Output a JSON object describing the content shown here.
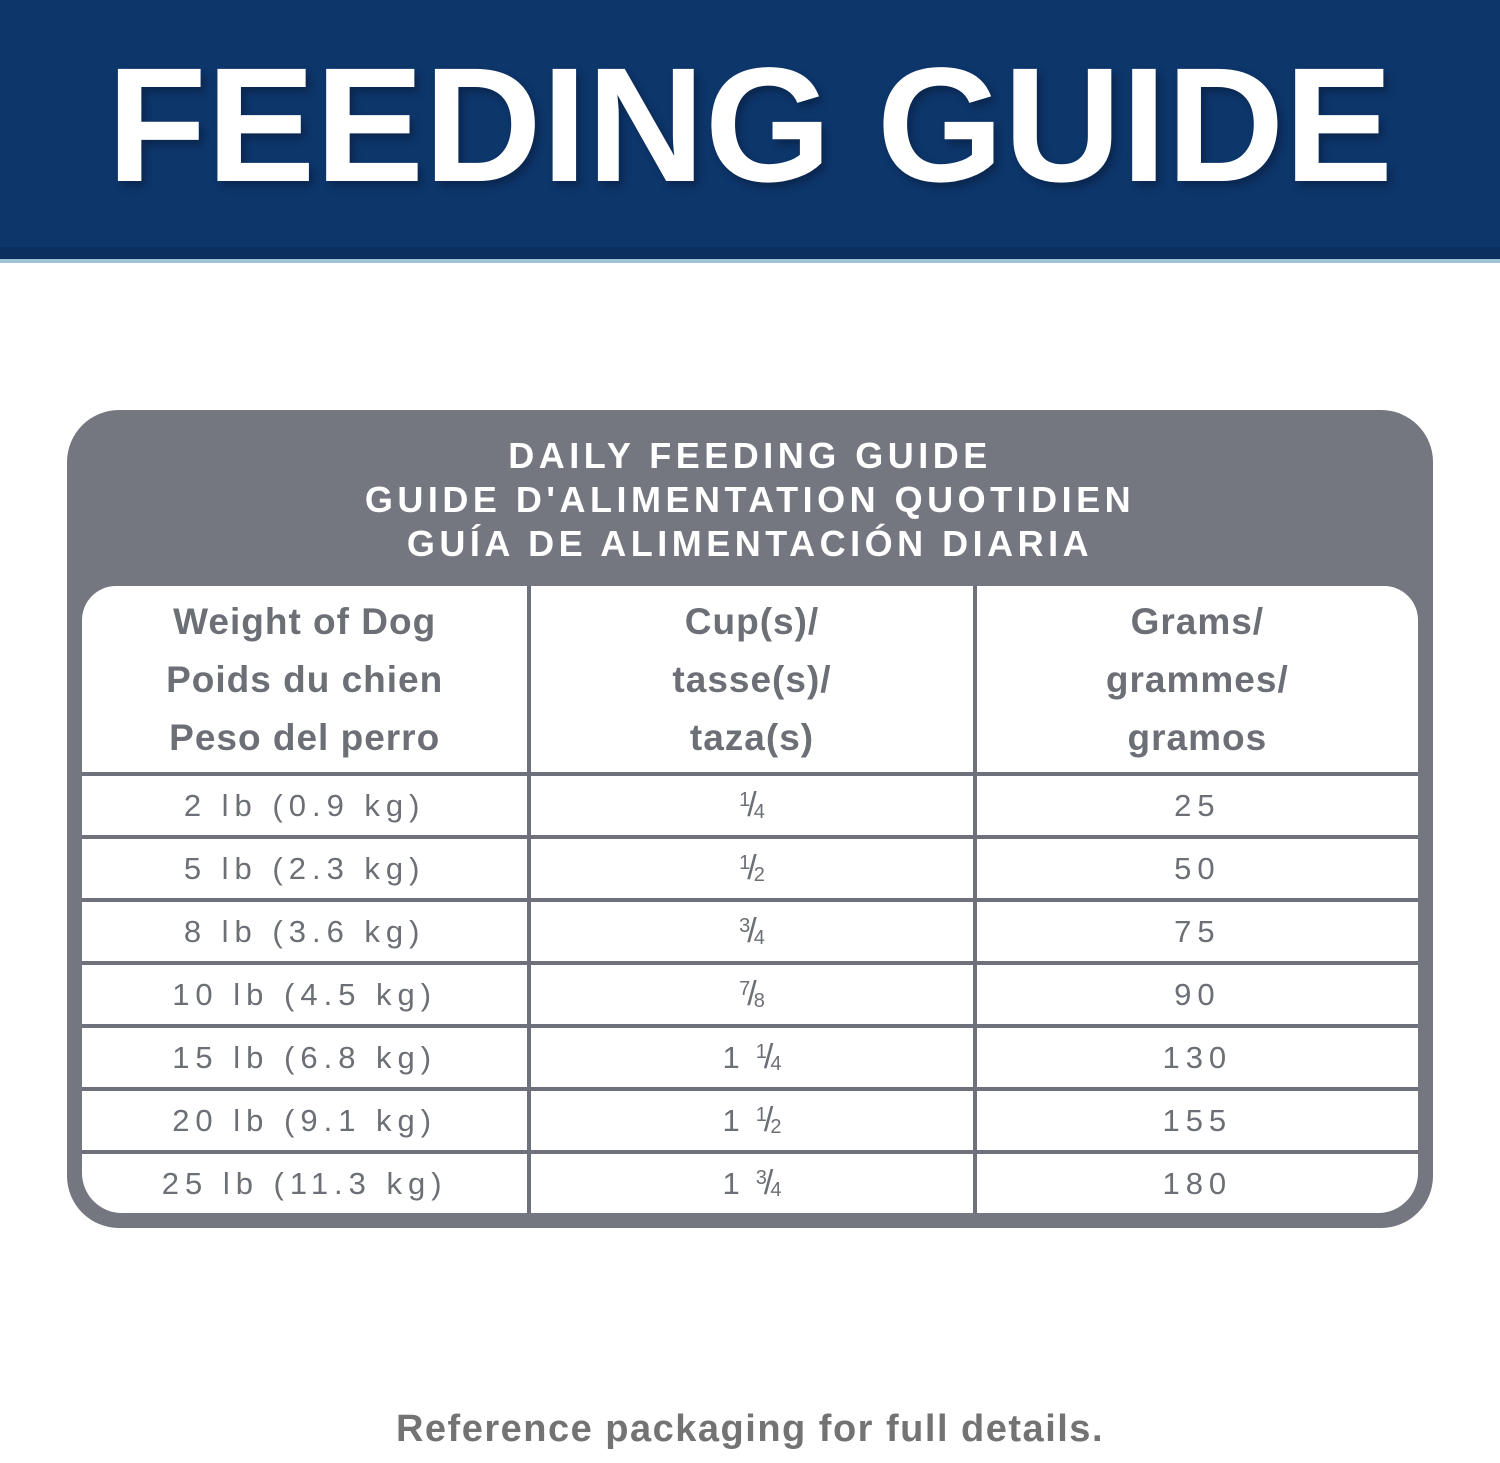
{
  "header": {
    "title": "FEEDING GUIDE"
  },
  "panel": {
    "heading": {
      "en": "DAILY FEEDING GUIDE",
      "fr": "GUIDE D'ALIMENTATION QUOTIDIEN",
      "es": "GUÍA DE ALIMENTACIÓN DIARIA"
    },
    "table": {
      "fraction_slash": "/",
      "columns": [
        {
          "lines": [
            "Weight of Dog",
            "Poids du chien",
            "Peso del perro"
          ]
        },
        {
          "lines": [
            "Cup(s)/",
            "tasse(s)/",
            "taza(s)"
          ]
        },
        {
          "lines": [
            "Grams/",
            "grammes/",
            "gramos"
          ]
        }
      ],
      "rows": [
        {
          "weight": "2 lb (0.9 kg)",
          "cups": {
            "whole": "",
            "num": "1",
            "den": "4"
          },
          "grams": "25"
        },
        {
          "weight": "5 lb (2.3 kg)",
          "cups": {
            "whole": "",
            "num": "1",
            "den": "2"
          },
          "grams": "50"
        },
        {
          "weight": "8 lb (3.6 kg)",
          "cups": {
            "whole": "",
            "num": "3",
            "den": "4"
          },
          "grams": "75"
        },
        {
          "weight": "10 lb (4.5 kg)",
          "cups": {
            "whole": "",
            "num": "7",
            "den": "8"
          },
          "grams": "90"
        },
        {
          "weight": "15 lb (6.8 kg)",
          "cups": {
            "whole": "1",
            "num": "1",
            "den": "4"
          },
          "grams": "130"
        },
        {
          "weight": "20 lb (9.1 kg)",
          "cups": {
            "whole": "1",
            "num": "1",
            "den": "2"
          },
          "grams": "155"
        },
        {
          "weight": "25 lb (11.3 kg)",
          "cups": {
            "whole": "1",
            "num": "3",
            "den": "4"
          },
          "grams": "180"
        }
      ]
    }
  },
  "footer": {
    "note": "Reference packaging for full details."
  },
  "colors": {
    "banner_navy": "#0d366b",
    "banner_underline_blue": "#9ec4d6",
    "panel_gray": "#747780",
    "table_line_gray": "#6e717b",
    "table_text_gray": "#6c6f76",
    "footer_text_gray": "#737373",
    "text_white": "#ffffff"
  }
}
